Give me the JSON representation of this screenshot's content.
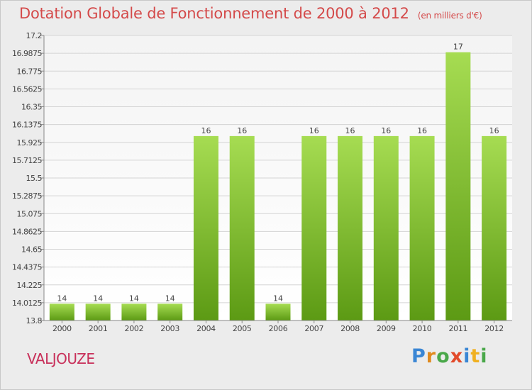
{
  "title": "Dotation Globale de Fonctionnement de 2000 à 2012",
  "unit_note": "(en milliers d'€)",
  "commune": "VALJOUZE",
  "logo_text": "Proxiti",
  "colors": {
    "title": "#d44a4a",
    "bar_light": "#a6dc52",
    "bar_dark": "#5c9a14",
    "commune": "#c8305a"
  },
  "chart_data": {
    "type": "bar",
    "title": "Dotation Globale de Fonctionnement de 2000 à 2012",
    "xlabel": "",
    "ylabel": "",
    "categories": [
      "2000",
      "2001",
      "2002",
      "2003",
      "2004",
      "2005",
      "2006",
      "2007",
      "2008",
      "2009",
      "2010",
      "2011",
      "2012"
    ],
    "values": [
      14,
      14,
      14,
      14,
      16,
      16,
      14,
      16,
      16,
      16,
      16,
      17,
      16
    ],
    "data_labels": [
      "14",
      "14",
      "14",
      "14",
      "16",
      "16",
      "14",
      "16",
      "16",
      "16",
      "16",
      "17",
      "16"
    ],
    "ylim": [
      13.8,
      17.2
    ],
    "yticks": [
      "13.8",
      "14.0125",
      "14.225",
      "14.4375",
      "14.65",
      "14.8625",
      "15.075",
      "15.2875",
      "15.5",
      "15.7125",
      "15.925",
      "16.1375",
      "16.35",
      "16.5625",
      "16.775",
      "16.9875",
      "17.2"
    ],
    "grid": true
  }
}
